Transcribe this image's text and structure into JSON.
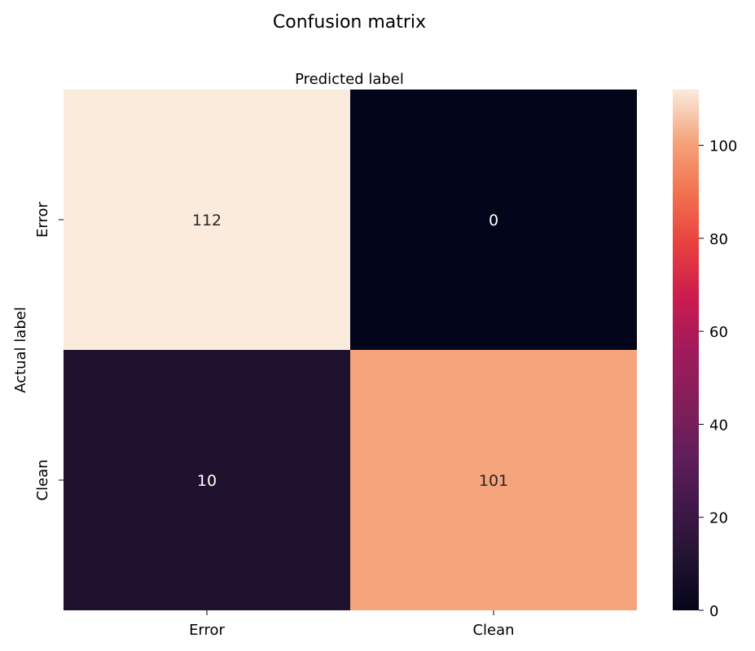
{
  "chart_data": {
    "type": "heatmap",
    "title": "Confusion matrix",
    "xlabel": "Predicted label",
    "ylabel": "Actual label",
    "x_categories": [
      "Error",
      "Clean"
    ],
    "y_categories": [
      "Error",
      "Clean"
    ],
    "values": [
      [
        112,
        0
      ],
      [
        10,
        101
      ]
    ],
    "colormap": "rocket",
    "colorbar": {
      "range": [
        0,
        112
      ],
      "ticks": [
        "0",
        "20",
        "40",
        "60",
        "80",
        "100"
      ]
    },
    "xaxis_position": "top-label, bottom-ticks"
  }
}
